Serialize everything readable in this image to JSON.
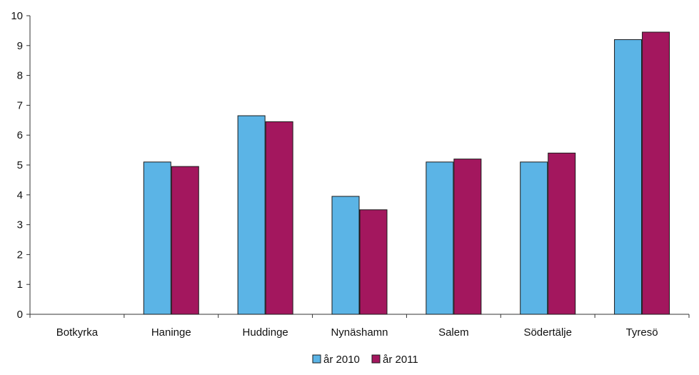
{
  "chart_data": {
    "type": "bar",
    "categories": [
      "Botkyrka",
      "Haninge",
      "Huddinge",
      "Nynäshamn",
      "Salem",
      "Södertälje",
      "Tyresö"
    ],
    "series": [
      {
        "name": "år 2010",
        "color": "#5bb4e6",
        "values": [
          null,
          5.1,
          6.65,
          3.95,
          5.1,
          5.1,
          9.2
        ]
      },
      {
        "name": "år 2011",
        "color": "#a3175e",
        "values": [
          null,
          4.95,
          6.45,
          3.5,
          5.2,
          5.4,
          9.45
        ]
      }
    ],
    "title": "",
    "xlabel": "",
    "ylabel": "",
    "ylim": [
      0,
      10
    ],
    "yticks": [
      0,
      1,
      2,
      3,
      4,
      5,
      6,
      7,
      8,
      9,
      10
    ],
    "grid": false,
    "legend": "bottom-center"
  }
}
